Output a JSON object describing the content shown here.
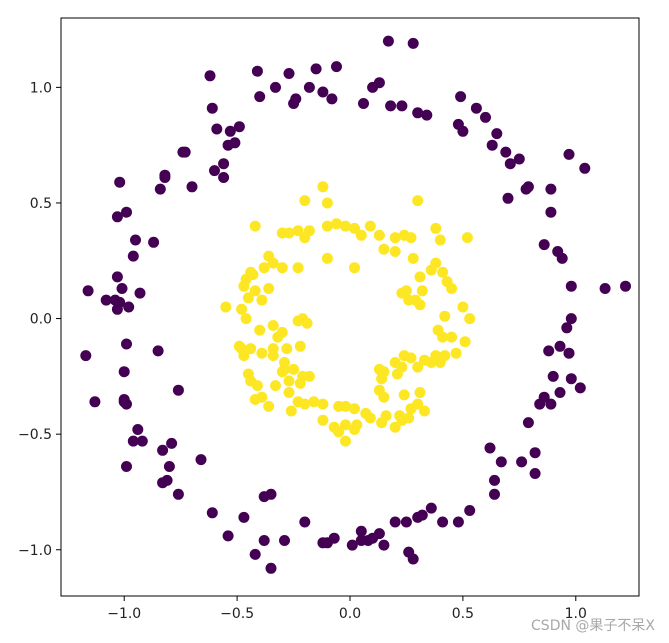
{
  "chart_data": {
    "type": "scatter",
    "xlim": [
      -1.28,
      1.28
    ],
    "ylim": [
      -1.2,
      1.3
    ],
    "xticks": [
      -1.0,
      -0.5,
      0.0,
      0.5,
      1.0
    ],
    "xtick_labels": [
      "−1.0",
      "−0.5",
      "0.0",
      "0.5",
      "1.0"
    ],
    "yticks": [
      -1.0,
      -0.5,
      0.0,
      0.5,
      1.0
    ],
    "ytick_labels": [
      "−1.0",
      "−0.5",
      "0.0",
      "0.5",
      "1.0"
    ],
    "grid": false,
    "legend": "none",
    "series": [
      {
        "color": "#440154",
        "points": [
          [
            0.17,
            1.2
          ],
          [
            0.28,
            1.19
          ],
          [
            -0.06,
            1.09
          ],
          [
            0.1,
            1.0
          ],
          [
            -0.41,
            1.07
          ],
          [
            -0.62,
            1.05
          ],
          [
            -0.27,
            1.06
          ],
          [
            -0.15,
            1.08
          ],
          [
            -0.18,
            1.0
          ],
          [
            -0.12,
            0.98
          ],
          [
            -0.4,
            0.96
          ],
          [
            -0.25,
            0.93
          ],
          [
            -0.08,
            0.95
          ],
          [
            0.06,
            0.93
          ],
          [
            0.18,
            0.92
          ],
          [
            0.23,
            0.92
          ],
          [
            0.3,
            0.89
          ],
          [
            0.34,
            0.88
          ],
          [
            0.49,
            0.96
          ],
          [
            0.56,
            0.91
          ],
          [
            0.6,
            0.87
          ],
          [
            0.48,
            0.84
          ],
          [
            0.5,
            0.81
          ],
          [
            0.65,
            0.8
          ],
          [
            0.63,
            0.75
          ],
          [
            0.69,
            0.72
          ],
          [
            0.75,
            0.69
          ],
          [
            0.71,
            0.67
          ],
          [
            0.79,
            0.57
          ],
          [
            0.78,
            0.56
          ],
          [
            0.7,
            0.52
          ],
          [
            0.89,
            0.56
          ],
          [
            0.97,
            0.71
          ],
          [
            1.04,
            0.65
          ],
          [
            0.89,
            0.46
          ],
          [
            0.86,
            0.32
          ],
          [
            0.92,
            0.29
          ],
          [
            0.94,
            0.26
          ],
          [
            0.98,
            0.14
          ],
          [
            1.13,
            0.13
          ],
          [
            1.22,
            0.14
          ],
          [
            0.98,
            0.0
          ],
          [
            0.96,
            -0.04
          ],
          [
            0.93,
            -0.12
          ],
          [
            0.97,
            -0.15
          ],
          [
            0.88,
            -0.14
          ],
          [
            0.9,
            -0.25
          ],
          [
            0.98,
            -0.26
          ],
          [
            1.02,
            -0.3
          ],
          [
            0.93,
            -0.32
          ],
          [
            0.86,
            -0.34
          ],
          [
            0.89,
            -0.37
          ],
          [
            0.84,
            -0.37
          ],
          [
            0.79,
            -0.45
          ],
          [
            0.62,
            -0.56
          ],
          [
            0.67,
            -0.62
          ],
          [
            0.76,
            -0.62
          ],
          [
            0.82,
            -0.58
          ],
          [
            0.64,
            -0.7
          ],
          [
            0.64,
            -0.76
          ],
          [
            0.82,
            -0.67
          ],
          [
            0.53,
            -0.83
          ],
          [
            0.48,
            -0.88
          ],
          [
            0.41,
            -0.88
          ],
          [
            0.36,
            -0.82
          ],
          [
            0.32,
            -0.85
          ],
          [
            0.3,
            -0.86
          ],
          [
            0.25,
            -0.88
          ],
          [
            0.2,
            -0.88
          ],
          [
            0.13,
            -0.93
          ],
          [
            0.1,
            -0.95
          ],
          [
            0.08,
            -0.96
          ],
          [
            0.05,
            -0.96
          ],
          [
            0.01,
            -0.98
          ],
          [
            -0.07,
            -0.95
          ],
          [
            -0.12,
            -0.97
          ],
          [
            -0.1,
            -0.97
          ],
          [
            0.15,
            -0.98
          ],
          [
            0.26,
            -1.01
          ],
          [
            0.28,
            -1.04
          ],
          [
            0.05,
            -0.92
          ],
          [
            -0.2,
            -0.88
          ],
          [
            -0.29,
            -0.96
          ],
          [
            -0.38,
            -0.96
          ],
          [
            -0.42,
            -1.02
          ],
          [
            -0.35,
            -1.08
          ],
          [
            -0.47,
            -0.86
          ],
          [
            -0.54,
            -0.94
          ],
          [
            -0.61,
            -0.84
          ],
          [
            -0.38,
            -0.77
          ],
          [
            -0.35,
            -0.76
          ],
          [
            -0.76,
            -0.76
          ],
          [
            -0.81,
            -0.7
          ],
          [
            -0.83,
            -0.71
          ],
          [
            -0.8,
            -0.64
          ],
          [
            -0.79,
            -0.54
          ],
          [
            -0.66,
            -0.61
          ],
          [
            -0.83,
            -0.57
          ],
          [
            -0.94,
            -0.48
          ],
          [
            -0.92,
            -0.53
          ],
          [
            -0.96,
            -0.53
          ],
          [
            -0.99,
            -0.64
          ],
          [
            -0.99,
            -0.37
          ],
          [
            -1.0,
            -0.36
          ],
          [
            -1.0,
            -0.35
          ],
          [
            -1.13,
            -0.36
          ],
          [
            -0.76,
            -0.31
          ],
          [
            -1.0,
            -0.23
          ],
          [
            -0.85,
            -0.14
          ],
          [
            -1.17,
            -0.16
          ],
          [
            -0.99,
            -0.11
          ],
          [
            -0.93,
            0.11
          ],
          [
            -1.04,
            0.08
          ],
          [
            -1.02,
            0.07
          ],
          [
            -1.01,
            0.13
          ],
          [
            -1.03,
            0.18
          ],
          [
            -1.08,
            0.08
          ],
          [
            -1.16,
            0.12
          ],
          [
            -1.03,
            0.04
          ],
          [
            -0.98,
            0.05
          ],
          [
            -0.96,
            0.27
          ],
          [
            -0.95,
            0.34
          ],
          [
            -0.87,
            0.33
          ],
          [
            -1.03,
            0.44
          ],
          [
            -0.99,
            0.46
          ],
          [
            -1.02,
            0.59
          ],
          [
            -0.84,
            0.56
          ],
          [
            -0.82,
            0.61
          ],
          [
            -0.82,
            0.62
          ],
          [
            -0.7,
            0.57
          ],
          [
            -0.6,
            0.64
          ],
          [
            -0.56,
            0.61
          ],
          [
            -0.73,
            0.72
          ],
          [
            -0.74,
            0.72
          ],
          [
            -0.56,
            0.67
          ],
          [
            -0.54,
            0.75
          ],
          [
            -0.59,
            0.82
          ],
          [
            -0.53,
            0.81
          ],
          [
            -0.51,
            0.76
          ],
          [
            -0.61,
            0.91
          ],
          [
            -0.49,
            0.83
          ],
          [
            -0.33,
            1.0
          ],
          [
            -0.24,
            0.95
          ],
          [
            0.13,
            1.02
          ]
        ]
      },
      {
        "color": "#fde725",
        "points": [
          [
            -0.12,
            0.57
          ],
          [
            -0.2,
            0.51
          ],
          [
            -0.1,
            0.5
          ],
          [
            0.3,
            0.51
          ],
          [
            -0.42,
            0.4
          ],
          [
            -0.3,
            0.37
          ],
          [
            -0.27,
            0.37
          ],
          [
            -0.23,
            0.38
          ],
          [
            -0.2,
            0.35
          ],
          [
            -0.18,
            0.38
          ],
          [
            -0.1,
            0.4
          ],
          [
            -0.06,
            0.41
          ],
          [
            -0.02,
            0.4
          ],
          [
            0.02,
            0.39
          ],
          [
            0.05,
            0.36
          ],
          [
            0.09,
            0.4
          ],
          [
            0.13,
            0.36
          ],
          [
            0.2,
            0.35
          ],
          [
            0.24,
            0.36
          ],
          [
            0.27,
            0.35
          ],
          [
            0.38,
            0.39
          ],
          [
            0.4,
            0.34
          ],
          [
            0.52,
            0.35
          ],
          [
            -0.36,
            0.27
          ],
          [
            -0.34,
            0.24
          ],
          [
            -0.38,
            0.22
          ],
          [
            -0.44,
            0.2
          ],
          [
            -0.46,
            0.17
          ],
          [
            -0.43,
            0.19
          ],
          [
            -0.47,
            0.14
          ],
          [
            -0.42,
            0.12
          ],
          [
            -0.36,
            0.13
          ],
          [
            -0.39,
            0.08
          ],
          [
            -0.45,
            0.09
          ],
          [
            -0.48,
            0.04
          ],
          [
            -0.46,
            0.0
          ],
          [
            -0.55,
            0.05
          ],
          [
            -0.3,
            0.22
          ],
          [
            -0.23,
            0.22
          ],
          [
            -0.1,
            0.26
          ],
          [
            0.02,
            0.22
          ],
          [
            0.2,
            0.29
          ],
          [
            0.15,
            0.3
          ],
          [
            0.28,
            0.26
          ],
          [
            0.31,
            0.18
          ],
          [
            0.36,
            0.21
          ],
          [
            0.38,
            0.24
          ],
          [
            0.41,
            0.2
          ],
          [
            0.43,
            0.16
          ],
          [
            0.45,
            0.13
          ],
          [
            0.32,
            0.12
          ],
          [
            0.25,
            0.12
          ],
          [
            0.23,
            0.11
          ],
          [
            0.29,
            0.08
          ],
          [
            0.31,
            0.06
          ],
          [
            0.26,
            0.08
          ],
          [
            0.5,
            0.05
          ],
          [
            0.53,
            0.0
          ],
          [
            0.42,
            0.01
          ],
          [
            0.39,
            -0.05
          ],
          [
            0.41,
            -0.08
          ],
          [
            0.45,
            -0.08
          ],
          [
            0.51,
            -0.1
          ],
          [
            0.47,
            -0.15
          ],
          [
            0.42,
            -0.16
          ],
          [
            0.38,
            -0.16
          ],
          [
            0.4,
            -0.19
          ],
          [
            0.36,
            -0.19
          ],
          [
            0.33,
            -0.18
          ],
          [
            0.3,
            -0.21
          ],
          [
            0.27,
            -0.17
          ],
          [
            0.24,
            -0.16
          ],
          [
            0.2,
            -0.19
          ],
          [
            0.23,
            -0.21
          ],
          [
            0.21,
            -0.24
          ],
          [
            0.15,
            -0.23
          ],
          [
            0.13,
            -0.22
          ],
          [
            0.14,
            -0.26
          ],
          [
            0.13,
            -0.31
          ],
          [
            0.15,
            -0.34
          ],
          [
            0.24,
            -0.33
          ],
          [
            0.31,
            -0.32
          ],
          [
            0.3,
            -0.37
          ],
          [
            0.27,
            -0.39
          ],
          [
            0.33,
            -0.4
          ],
          [
            0.26,
            -0.43
          ],
          [
            0.22,
            -0.42
          ],
          [
            0.23,
            -0.44
          ],
          [
            0.16,
            -0.42
          ],
          [
            0.14,
            -0.45
          ],
          [
            0.2,
            -0.47
          ],
          [
            0.09,
            -0.43
          ],
          [
            0.07,
            -0.41
          ],
          [
            0.02,
            -0.39
          ],
          [
            -0.02,
            -0.38
          ],
          [
            -0.05,
            -0.38
          ],
          [
            -0.02,
            -0.46
          ],
          [
            0.02,
            -0.48
          ],
          [
            0.03,
            -0.46
          ],
          [
            -0.05,
            -0.49
          ],
          [
            -0.02,
            -0.53
          ],
          [
            -0.07,
            -0.47
          ],
          [
            -0.12,
            -0.44
          ],
          [
            -0.12,
            -0.37
          ],
          [
            -0.16,
            -0.36
          ],
          [
            -0.2,
            -0.37
          ],
          [
            -0.26,
            -0.4
          ],
          [
            -0.23,
            -0.36
          ],
          [
            -0.27,
            -0.32
          ],
          [
            -0.22,
            -0.28
          ],
          [
            -0.21,
            -0.25
          ],
          [
            -0.18,
            -0.25
          ],
          [
            -0.25,
            -0.22
          ],
          [
            -0.29,
            -0.19
          ],
          [
            -0.29,
            -0.22
          ],
          [
            -0.3,
            -0.23
          ],
          [
            -0.27,
            -0.27
          ],
          [
            -0.33,
            -0.29
          ],
          [
            -0.36,
            -0.38
          ],
          [
            -0.39,
            -0.34
          ],
          [
            -0.42,
            -0.35
          ],
          [
            -0.41,
            -0.29
          ],
          [
            -0.44,
            -0.27
          ],
          [
            -0.45,
            -0.24
          ],
          [
            -0.47,
            -0.16
          ],
          [
            -0.48,
            -0.13
          ],
          [
            -0.49,
            -0.12
          ],
          [
            -0.44,
            -0.13
          ],
          [
            -0.39,
            -0.15
          ],
          [
            -0.34,
            -0.16
          ],
          [
            -0.34,
            -0.13
          ],
          [
            -0.32,
            -0.08
          ],
          [
            -0.3,
            -0.06
          ],
          [
            -0.28,
            -0.13
          ],
          [
            -0.22,
            -0.12
          ],
          [
            -0.4,
            -0.05
          ],
          [
            -0.34,
            -0.03
          ],
          [
            -0.23,
            -0.01
          ],
          [
            -0.21,
            0.0
          ],
          [
            -0.19,
            -0.02
          ]
        ]
      }
    ]
  },
  "watermark": "CSDN @果子不呆X"
}
